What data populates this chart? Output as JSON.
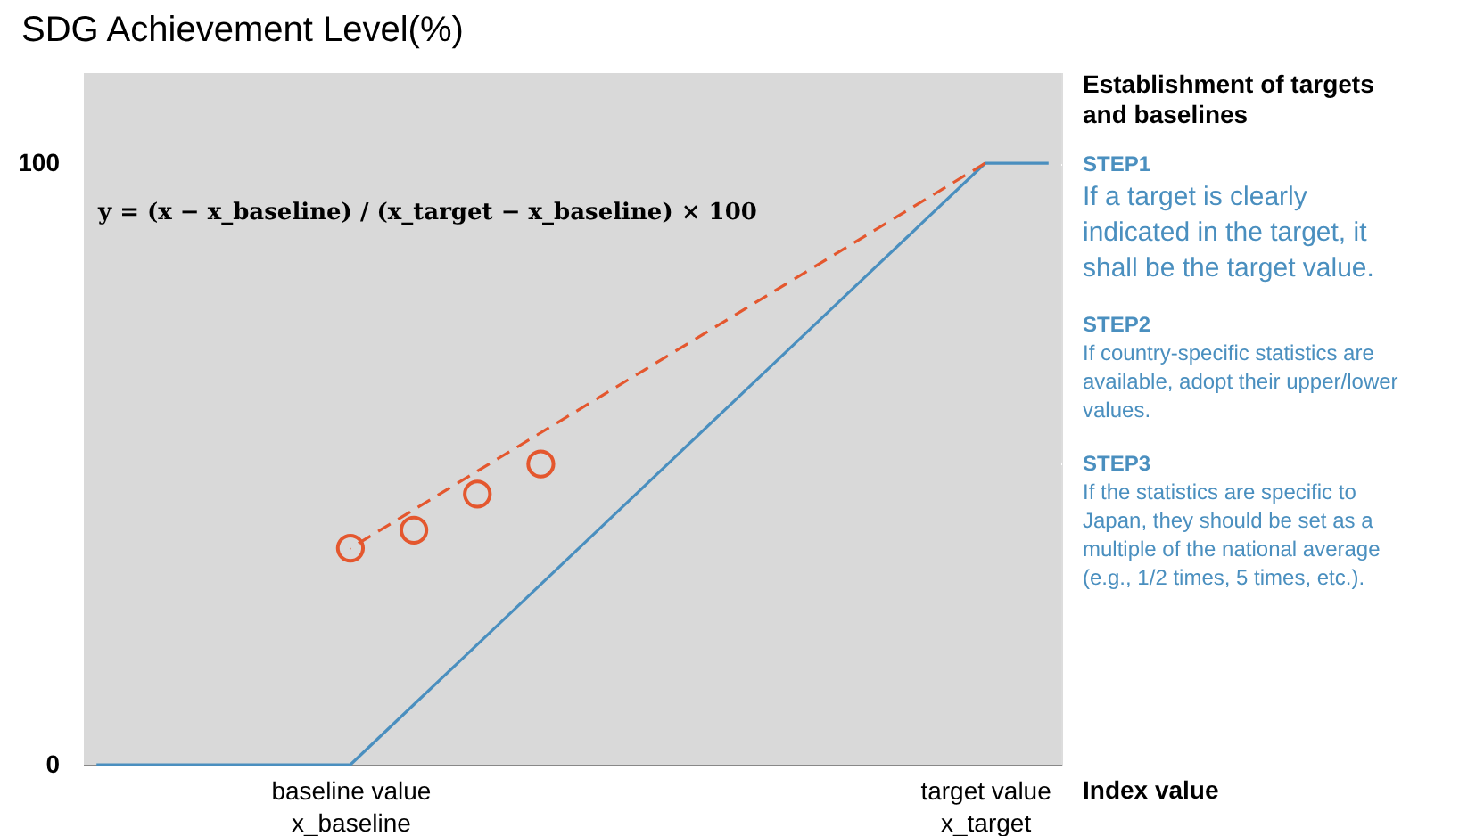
{
  "chart_data": {
    "type": "line",
    "title": "SDG Achievement Level(%)",
    "xlabel": "Index value",
    "categories": [
      null,
      null,
      null,
      null,
      "baseline value\nx_baseline",
      null,
      null,
      null,
      null,
      null,
      null,
      null,
      null,
      null,
      "target value\nx_target",
      null
    ],
    "ylim": [
      0,
      115
    ],
    "yticks": [
      0,
      {
        "value": 50,
        "label": null
      },
      100
    ],
    "grid": true,
    "series": [
      {
        "color": "#4a8fbf",
        "line_style": "solid",
        "values": [
          0,
          0,
          0,
          0,
          0,
          10,
          20,
          30,
          40,
          50,
          60,
          70,
          80,
          90,
          100,
          100
        ]
      },
      {
        "type": "line",
        "color": "#e4572e",
        "line_style": "dashed",
        "values": [
          null,
          null,
          null,
          null,
          36,
          null,
          null,
          null,
          null,
          null,
          null,
          null,
          null,
          null,
          100,
          null
        ]
      },
      {
        "type": "scatter",
        "color": "#e4572e",
        "marker": "circle",
        "values": [
          null,
          null,
          null,
          null,
          36,
          39,
          45,
          50,
          null,
          null,
          null,
          null,
          null,
          null,
          null,
          null
        ]
      }
    ],
    "annotations": [
      "y = (x − x_baseline) / (x_target − x_baseline) × 100",
      "Establishment of targets and baselines",
      "STEP1",
      "If a target is clearly indicated in the target, it shall be the target value.",
      "STEP2",
      "If country-specific statistics are available, adopt their upper/lower values.",
      "STEP3",
      "If the statistics are specific to Japan, they should be set as a multiple of the national average (e.g., 1/2 times, 5 times, etc.)."
    ]
  }
}
